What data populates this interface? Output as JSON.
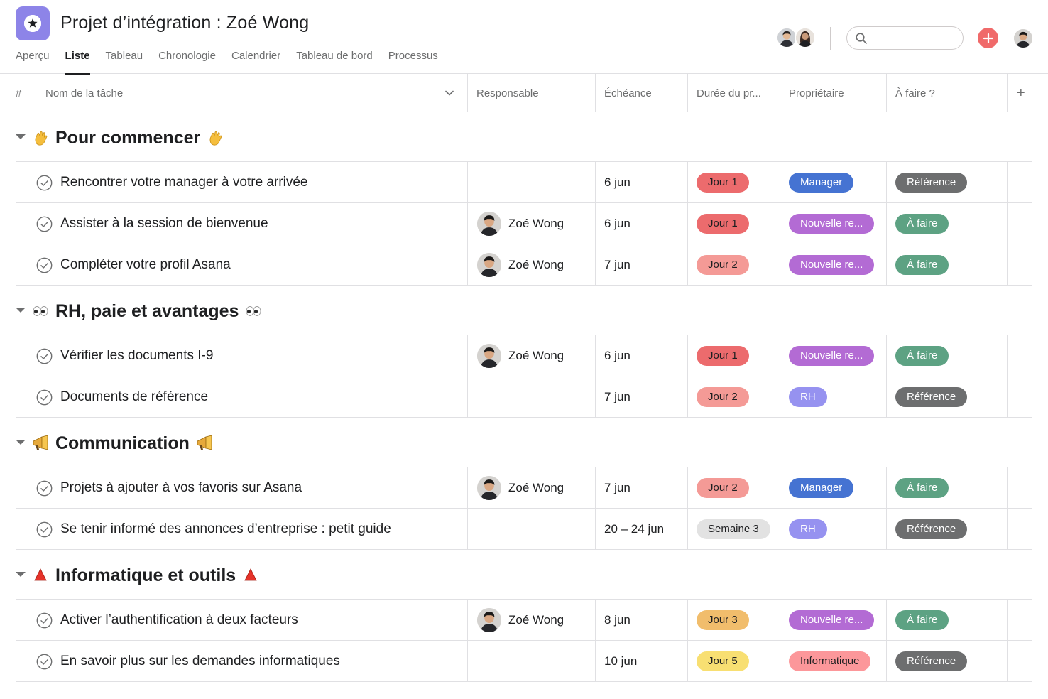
{
  "project": {
    "title": "Projet d’intégration : Zoé Wong"
  },
  "tabs": [
    {
      "label": "Aperçu",
      "active": false
    },
    {
      "label": "Liste",
      "active": true
    },
    {
      "label": "Tableau",
      "active": false
    },
    {
      "label": "Chronologie",
      "active": false
    },
    {
      "label": "Calendrier",
      "active": false
    },
    {
      "label": "Tableau de bord",
      "active": false
    },
    {
      "label": "Processus",
      "active": false
    }
  ],
  "search": {
    "placeholder": ""
  },
  "columns": {
    "number": "#",
    "task_name": "Nom de la tâche",
    "assignee": "Responsable",
    "due": "Échéance",
    "duration": "Durée du pr...",
    "owner": "Propriétaire",
    "todo": "À faire ?",
    "add": "+"
  },
  "colors": {
    "accent": "#8d84e8",
    "add_button": "#f06a6a",
    "jour1": "#ec6b6d",
    "jour2": "#f49a96",
    "jour3": "#f1bd6c",
    "jour5": "#f8df72",
    "semaine3": "#e2e2e2",
    "manager": "#4573d2",
    "nouvelle": "#b36bd4",
    "rh": "#9692f0",
    "informatique": "#fc979a",
    "reference": "#6d6e6f",
    "a_faire": "#5da283"
  },
  "sections": [
    {
      "title": "Pour commencer",
      "emoji": "waving-hand",
      "tasks": [
        {
          "name": "Rencontrer votre manager à votre arrivée",
          "assignee": "",
          "due": "6 jun",
          "duration": "Jour 1",
          "owner": "Manager",
          "todo": "Référence"
        },
        {
          "name": "Assister à la session de bienvenue",
          "assignee": "Zoé Wong",
          "due": "6 jun",
          "duration": "Jour 1",
          "owner": "Nouvelle re...",
          "todo": "À faire"
        },
        {
          "name": "Compléter votre profil Asana",
          "assignee": "Zoé Wong",
          "due": "7 jun",
          "duration": "Jour 2",
          "owner": "Nouvelle re...",
          "todo": "À faire"
        }
      ]
    },
    {
      "title": "RH, paie et avantages",
      "emoji": "eyes",
      "tasks": [
        {
          "name": "Vérifier les documents I-9",
          "assignee": "Zoé Wong",
          "due": "6 jun",
          "duration": "Jour 1",
          "owner": "Nouvelle re...",
          "todo": "À faire"
        },
        {
          "name": "Documents de référence",
          "assignee": "",
          "due": "7 jun",
          "duration": "Jour 2",
          "owner": "RH",
          "todo": "Référence"
        }
      ]
    },
    {
      "title": "Communication",
      "emoji": "megaphone",
      "tasks": [
        {
          "name": "Projets à ajouter à vos favoris sur Asana",
          "assignee": "Zoé Wong",
          "due": "7 jun",
          "duration": "Jour 2",
          "owner": "Manager",
          "todo": "À faire"
        },
        {
          "name": "Se tenir informé des annonces d’entreprise : petit guide",
          "assignee": "",
          "due": "20 – 24 jun",
          "duration": "Semaine 3",
          "owner": "RH",
          "todo": "Référence"
        }
      ]
    },
    {
      "title": "Informatique et outils",
      "emoji": "red-triangle",
      "tasks": [
        {
          "name": "Activer l’authentification à deux facteurs",
          "assignee": "Zoé Wong",
          "due": "8 jun",
          "duration": "Jour 3",
          "owner": "Nouvelle re...",
          "todo": "À faire"
        },
        {
          "name": "En savoir plus sur les demandes informatiques",
          "assignee": "",
          "due": "10 jun",
          "duration": "Jour 5",
          "owner": "Informatique",
          "todo": "Référence"
        }
      ]
    }
  ]
}
